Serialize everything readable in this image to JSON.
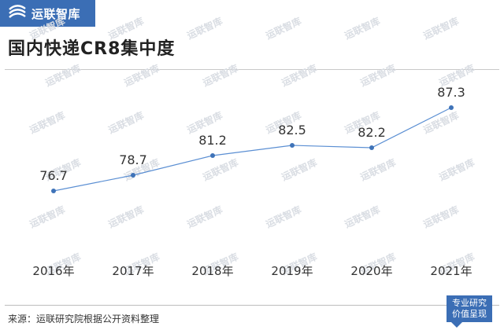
{
  "brand": {
    "name": "运联智库",
    "watermark": "运联智库"
  },
  "title": "国内快递CR8集中度",
  "source": "来源：运联研究院根据公开资料整理",
  "badge": {
    "line1": "专业研究",
    "line2": "价值呈现"
  },
  "colors": {
    "accent": "#3b6eb5",
    "line": "#5b8fd3",
    "point": "#3f73b8"
  },
  "chart_data": {
    "type": "line",
    "title": "国内快递CR8集中度",
    "categories": [
      "2016年",
      "2017年",
      "2018年",
      "2019年",
      "2020年",
      "2021年"
    ],
    "values": [
      76.7,
      78.7,
      81.2,
      82.5,
      82.2,
      87.3
    ],
    "ylim": [
      70,
      90
    ],
    "grid": false,
    "legend": "none"
  }
}
